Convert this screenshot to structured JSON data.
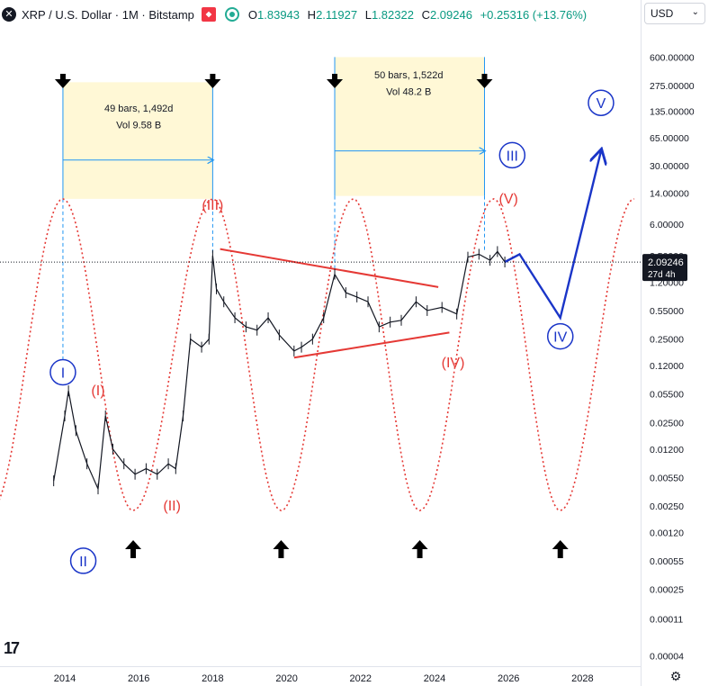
{
  "header": {
    "symbol": "XRP / U.S. Dollar · 1M · Bitstamp",
    "o_label": "O",
    "o_value": "1.83943",
    "h_label": "H",
    "h_value": "2.11927",
    "l_label": "L",
    "l_value": "1.82322",
    "c_label": "C",
    "c_value": "2.09246",
    "change": "+0.25316 (+13.76%)"
  },
  "currency": "USD",
  "colors": {
    "up": "#089981",
    "wave_red": "#e53935",
    "wave_blue": "#1a35c8",
    "cycle": "#e53935",
    "box": "#fff8d6",
    "measure": "#2196f3"
  },
  "chart_data": {
    "type": "line",
    "scale": "log",
    "price_axis_ticks": [
      "600.00000",
      "275.00000",
      "135.00000",
      "65.00000",
      "30.00000",
      "14.00000",
      "6.00000",
      "2.50000",
      "1.20000",
      "0.55000",
      "0.25000",
      "0.12000",
      "0.05500",
      "0.02500",
      "0.01200",
      "0.00550",
      "0.00250",
      "0.00120",
      "0.00055",
      "0.00025",
      "0.00011",
      "0.00004"
    ],
    "time_axis_ticks": [
      "2014",
      "2016",
      "2018",
      "2020",
      "2022",
      "2024",
      "2026",
      "2028"
    ],
    "last_price": "2.09246",
    "countdown": "27d 4h",
    "price_series": [
      [
        2013.7,
        0.005
      ],
      [
        2014.0,
        0.03
      ],
      [
        2014.1,
        0.06
      ],
      [
        2014.3,
        0.02
      ],
      [
        2014.6,
        0.008
      ],
      [
        2014.9,
        0.004
      ],
      [
        2015.1,
        0.03
      ],
      [
        2015.3,
        0.012
      ],
      [
        2015.6,
        0.008
      ],
      [
        2015.9,
        0.006
      ],
      [
        2016.2,
        0.007
      ],
      [
        2016.5,
        0.006
      ],
      [
        2016.8,
        0.008
      ],
      [
        2017.0,
        0.007
      ],
      [
        2017.2,
        0.03
      ],
      [
        2017.4,
        0.25
      ],
      [
        2017.7,
        0.2
      ],
      [
        2017.9,
        0.25
      ],
      [
        2018.0,
        2.5
      ],
      [
        2018.1,
        1.0
      ],
      [
        2018.3,
        0.7
      ],
      [
        2018.6,
        0.45
      ],
      [
        2018.9,
        0.35
      ],
      [
        2019.2,
        0.32
      ],
      [
        2019.5,
        0.45
      ],
      [
        2019.8,
        0.28
      ],
      [
        2020.2,
        0.18
      ],
      [
        2020.4,
        0.2
      ],
      [
        2020.7,
        0.25
      ],
      [
        2021.0,
        0.45
      ],
      [
        2021.3,
        1.5
      ],
      [
        2021.6,
        0.9
      ],
      [
        2021.9,
        0.8
      ],
      [
        2022.2,
        0.7
      ],
      [
        2022.5,
        0.35
      ],
      [
        2022.8,
        0.4
      ],
      [
        2023.1,
        0.42
      ],
      [
        2023.5,
        0.7
      ],
      [
        2023.8,
        0.55
      ],
      [
        2024.2,
        0.6
      ],
      [
        2024.6,
        0.5
      ],
      [
        2024.9,
        2.4
      ],
      [
        2025.2,
        2.6
      ],
      [
        2025.5,
        2.2
      ],
      [
        2025.7,
        2.8
      ],
      [
        2025.9,
        2.1
      ]
    ],
    "labels": [
      {
        "text": "49 bars, 1,492d",
        "x": 2016.0,
        "y": 150,
        "color": "#131722"
      },
      {
        "text": "Vol 9.58 B",
        "x": 2016.0,
        "y": 95,
        "color": "#131722"
      },
      {
        "text": "50 bars, 1,522d",
        "x": 2023.3,
        "y": 380,
        "color": "#131722"
      },
      {
        "text": "Vol 48.2 B",
        "x": 2023.3,
        "y": 240,
        "color": "#131722"
      },
      {
        "text": "(I)",
        "x": 2014.9,
        "y": 0.06,
        "color": "#e53935"
      },
      {
        "text": "(II)",
        "x": 2016.9,
        "y": 0.0025,
        "color": "#e53935"
      },
      {
        "text": "(III)",
        "x": 2018.0,
        "y": 10,
        "color": "#e53935"
      },
      {
        "text": "(IV)",
        "x": 2024.5,
        "y": 0.13,
        "color": "#e53935"
      },
      {
        "text": "(V)",
        "x": 2026.0,
        "y": 12,
        "color": "#e53935"
      }
    ],
    "circled_labels": [
      {
        "text": "I",
        "x": 2013.95,
        "y": 0.1
      },
      {
        "text": "II",
        "x": 2014.5,
        "y": 0.00055
      },
      {
        "text": "III",
        "x": 2026.1,
        "y": 40
      },
      {
        "text": "IV",
        "x": 2027.4,
        "y": 0.27
      },
      {
        "text": "V",
        "x": 2028.5,
        "y": 170
      }
    ],
    "projection": [
      [
        2025.9,
        2.1
      ],
      [
        2026.3,
        2.6
      ],
      [
        2027.4,
        0.45
      ],
      [
        2028.5,
        45
      ]
    ],
    "trendlines": [
      {
        "from": [
          2018.2,
          3.0
        ],
        "to": [
          2024.1,
          1.05
        ]
      },
      {
        "from": [
          2020.2,
          0.15
        ],
        "to": [
          2024.4,
          0.3
        ]
      }
    ],
    "measurements": [
      {
        "from": 2013.95,
        "to": 2018.0,
        "top": 300,
        "bottom": 12,
        "arrow_y": 35
      },
      {
        "from": 2021.3,
        "to": 2025.35,
        "top": 600,
        "bottom": 13,
        "arrow_y": 45
      }
    ],
    "down_arrows": [
      2013.95,
      2018.0,
      2021.3,
      2025.35
    ],
    "up_arrows": [
      2015.85,
      2019.85,
      2023.6,
      2027.4
    ],
    "cycle_peaks": [
      2013.95,
      2018.0,
      2021.8,
      2025.6,
      2029.4
    ],
    "cycle_troughs": [
      2015.85,
      2019.85,
      2023.6,
      2027.4
    ]
  }
}
